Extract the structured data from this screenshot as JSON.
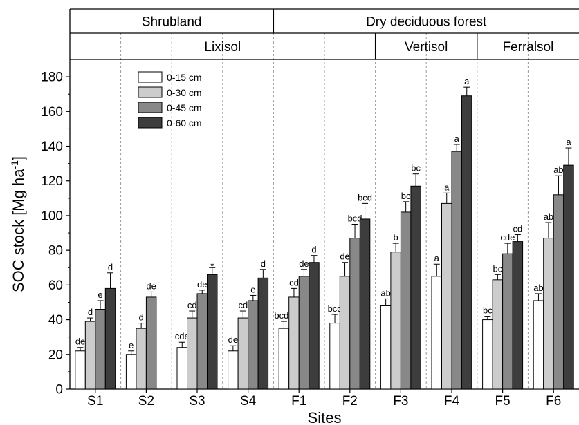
{
  "colors": {
    "series": [
      "#ffffff",
      "#cccccc",
      "#888888",
      "#3d3d3d"
    ],
    "stroke": "#000000",
    "separator": "#999999"
  },
  "chart_data": {
    "type": "bar",
    "xlabel": "Sites",
    "ylabel": "SOC stock [Mg ha",
    "ylabel_sup": "-1",
    "ylabel_close": "]",
    "ylim": [
      0,
      190
    ],
    "yticks": [
      0,
      20,
      40,
      60,
      80,
      100,
      120,
      140,
      160,
      180
    ],
    "categories": [
      "S1",
      "S2",
      "S3",
      "S4",
      "F1",
      "F2",
      "F3",
      "F4",
      "F5",
      "F6"
    ],
    "series": [
      {
        "name": "0-15 cm",
        "values": [
          22,
          20,
          24,
          22,
          35,
          38,
          48,
          65,
          40,
          51
        ],
        "errors": [
          2,
          2,
          3,
          3,
          4,
          5,
          4,
          7,
          2,
          4
        ],
        "labels": [
          "de",
          "e",
          "cde",
          "de",
          "bcde",
          "bcd",
          "ab",
          "a",
          "bc",
          "ab"
        ]
      },
      {
        "name": "0-30 cm",
        "values": [
          39,
          35,
          41,
          41,
          53,
          65,
          79,
          107,
          63,
          87
        ],
        "errors": [
          2,
          3,
          4,
          4,
          5,
          8,
          5,
          6,
          3,
          9
        ],
        "labels": [
          "d",
          "d",
          "cd",
          "cd",
          "cd",
          "de",
          "b",
          "a",
          "bc",
          "ab"
        ]
      },
      {
        "name": "0-45 cm",
        "values": [
          46,
          53,
          55,
          51,
          65,
          87,
          102,
          137,
          78,
          112
        ],
        "errors": [
          5,
          3,
          2,
          3,
          4,
          8,
          6,
          4,
          6,
          11
        ],
        "labels": [
          "e",
          "de",
          "de",
          "e",
          "de",
          "bcd",
          "bc",
          "a",
          "cde",
          "ab"
        ]
      },
      {
        "name": "0-60 cm",
        "values": [
          58,
          null,
          66,
          64,
          73,
          98,
          117,
          169,
          85,
          129
        ],
        "errors": [
          9,
          null,
          4,
          5,
          4,
          9,
          7,
          5,
          4,
          10
        ],
        "labels": [
          "d",
          null,
          "*",
          "d",
          "d",
          "bcd",
          "bc",
          "a",
          "cd",
          "a"
        ]
      }
    ],
    "header_rows": [
      {
        "groups": [
          {
            "label": "Shrubland",
            "span": 4
          },
          {
            "label": "Dry deciduous forest",
            "span": 6
          }
        ]
      },
      {
        "groups": [
          {
            "label": "Lixisol",
            "span": 6
          },
          {
            "label": "Vertisol",
            "span": 2
          },
          {
            "label": "Ferralsol",
            "span": 2
          }
        ]
      }
    ],
    "legend": {
      "position": "top-left"
    }
  }
}
